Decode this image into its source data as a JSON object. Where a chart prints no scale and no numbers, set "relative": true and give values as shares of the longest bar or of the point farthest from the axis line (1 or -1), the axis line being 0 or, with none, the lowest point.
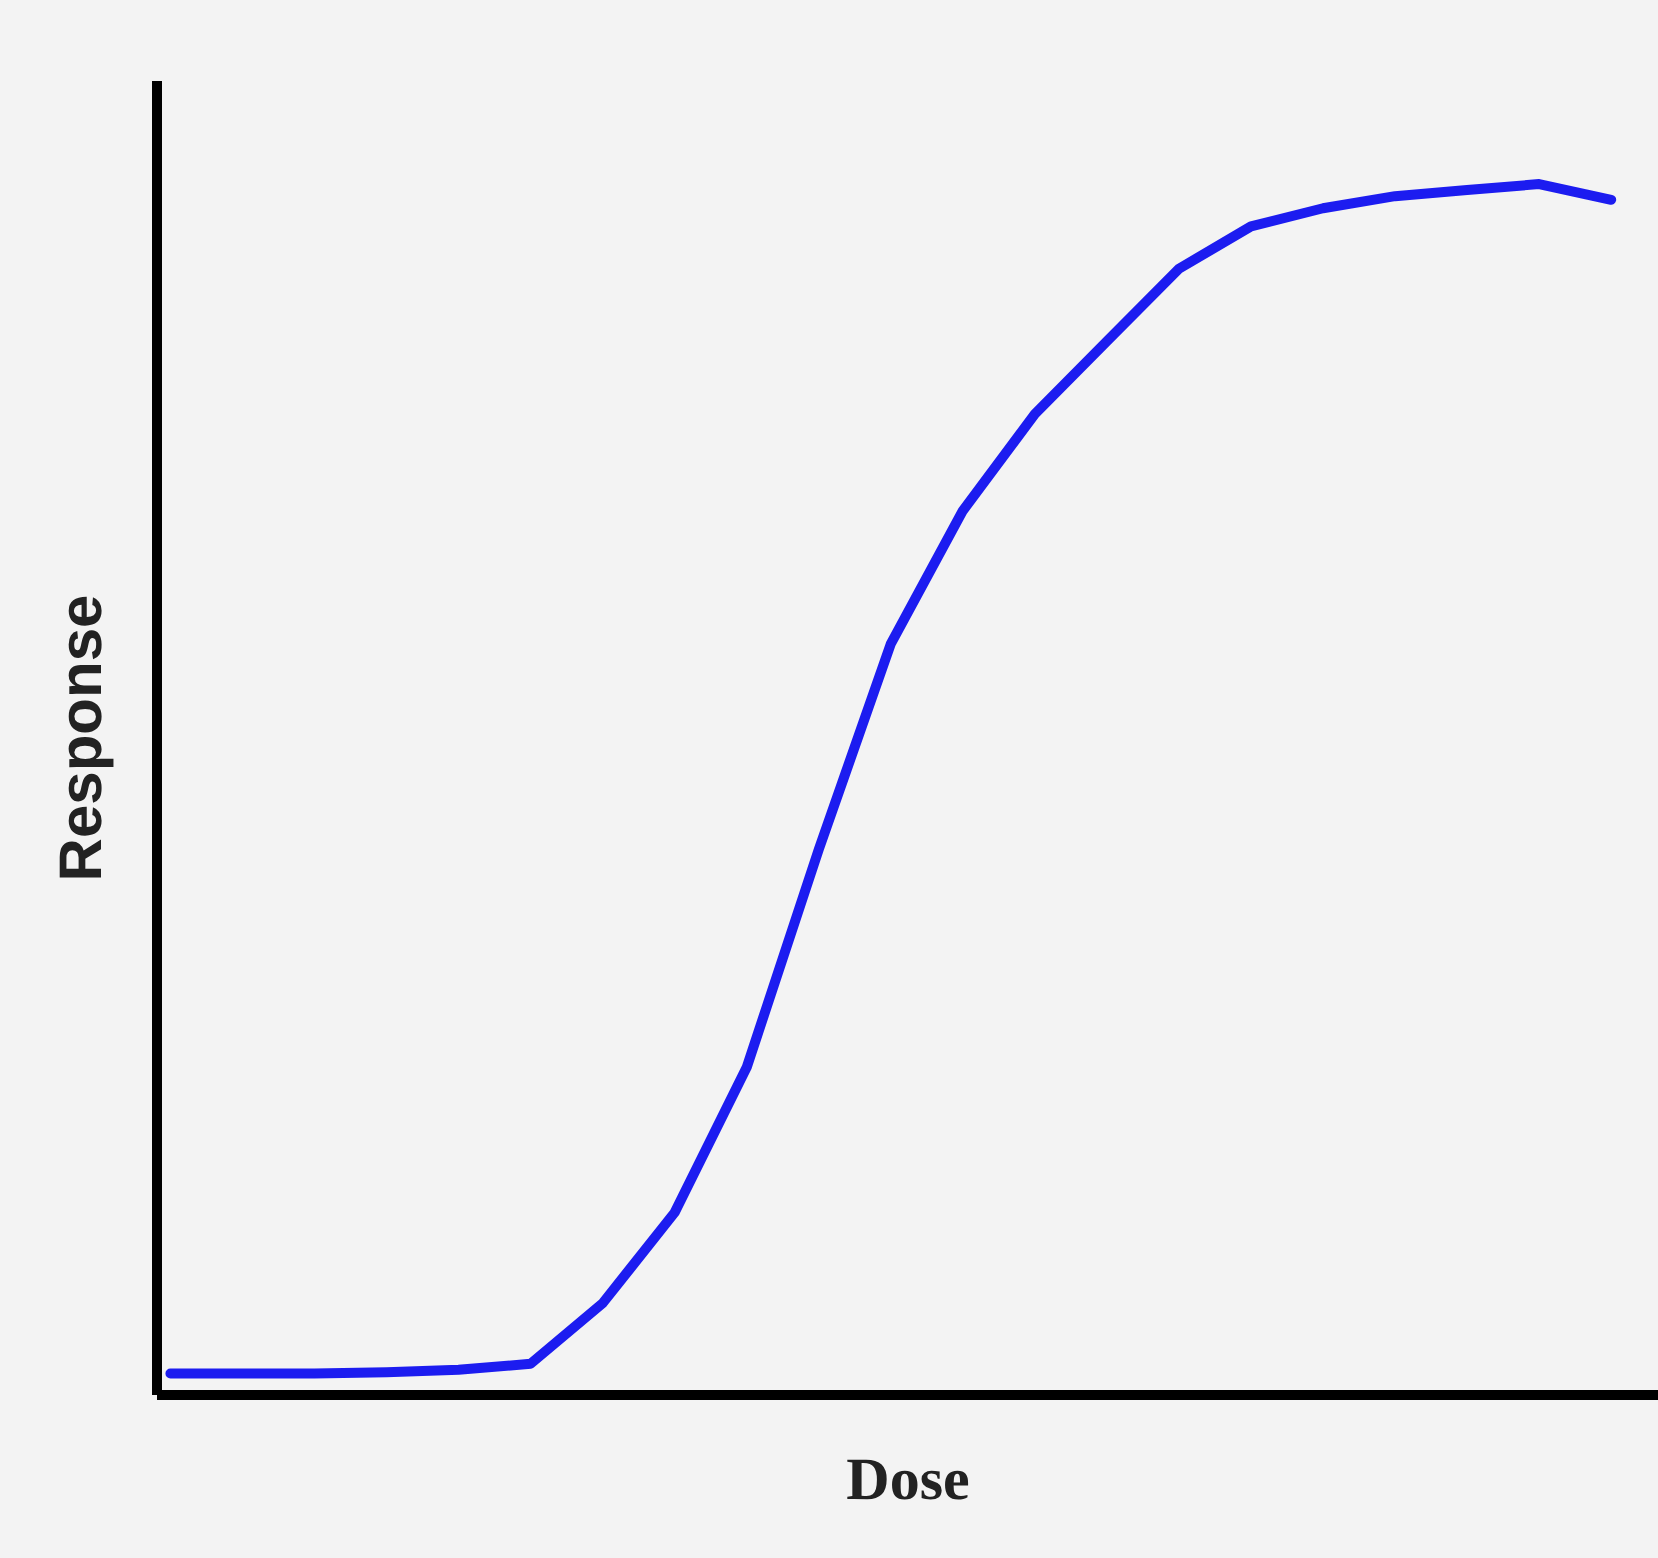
{
  "chart_data": {
    "type": "line",
    "relative": true,
    "xlabel": "Dose",
    "ylabel": "Response",
    "color": "#1c1cf0",
    "categories": [
      null,
      null,
      null,
      null,
      null,
      null,
      null,
      null,
      null,
      null,
      null,
      null,
      null,
      null,
      null,
      null,
      null,
      null,
      null,
      null,
      null
    ],
    "values": [
      0.017,
      0.017,
      0.017,
      0.018,
      0.02,
      0.025,
      0.075,
      0.15,
      0.27,
      0.45,
      0.62,
      0.73,
      0.81,
      0.87,
      0.93,
      0.965,
      0.98,
      0.99,
      0.995,
      1,
      0.987
    ]
  }
}
